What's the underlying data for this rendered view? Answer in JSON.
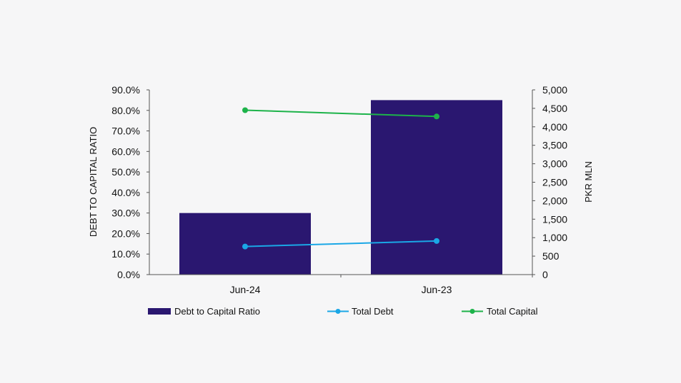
{
  "colors": {
    "background": "#f6f6f7",
    "bar": "#2a1770",
    "debt_line": "#1aa7e6",
    "capital_line": "#1db34a",
    "axis": "#555555"
  },
  "chart_data": {
    "type": "bar",
    "categories": [
      "Jun-24",
      "Jun-23"
    ],
    "series": [
      {
        "name": "Debt to Capital Ratio",
        "type": "bar",
        "axis": "left",
        "values": [
          30.0,
          85.0
        ]
      },
      {
        "name": "Total Debt",
        "type": "line",
        "axis": "right",
        "values": [
          760,
          910
        ]
      },
      {
        "name": "Total Capital",
        "type": "line",
        "axis": "right",
        "values": [
          4450,
          4280
        ]
      }
    ],
    "title": "",
    "ylabel": "DEBT TO CAPITAL RATIO",
    "y2label": "PKR MLN",
    "ylim": [
      0,
      90
    ],
    "y2lim": [
      0,
      5000
    ],
    "yticks": [
      "0.0%",
      "10.0%",
      "20.0%",
      "30.0%",
      "40.0%",
      "50.0%",
      "60.0%",
      "70.0%",
      "80.0%",
      "90.0%"
    ],
    "y2ticks": [
      "0",
      "500",
      "1,000",
      "1,500",
      "2,000",
      "2,500",
      "3,000",
      "3,500",
      "4,000",
      "4,500",
      "5,000"
    ],
    "grid": false,
    "legend": "bottom"
  }
}
